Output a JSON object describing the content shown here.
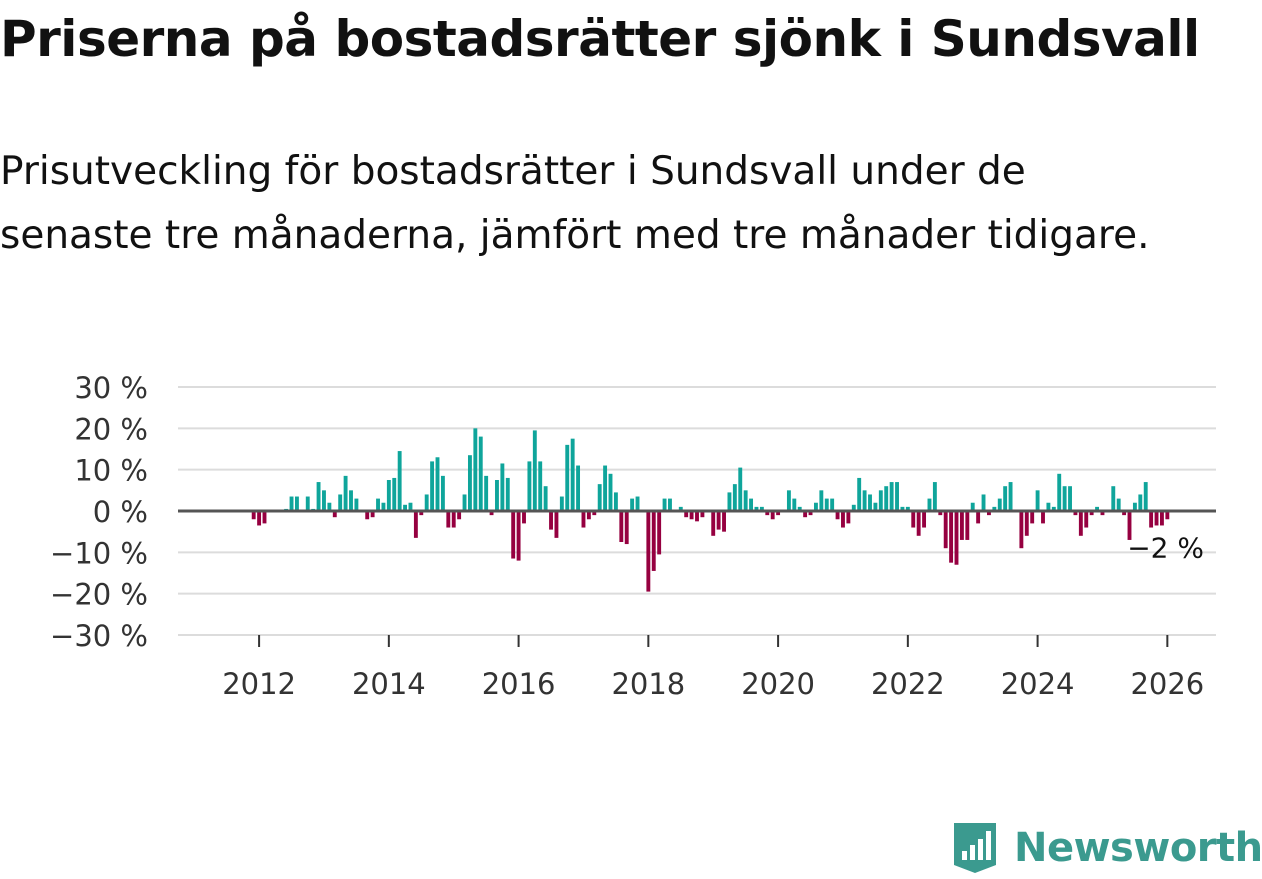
{
  "title": "Priserna på bostadsrätter sjönk i Sundsvall",
  "subtitle": "Prisutveckling för bostadsrätter i Sundsvall under de senaste tre månaderna, jämfört med tre månader tidigare.",
  "brand": {
    "name": "Newsworthy",
    "icon": "newsworthy-logo-icon"
  },
  "colors": {
    "positive": "#0fa59b",
    "negative": "#960040",
    "zero_line": "#555555",
    "grid": "#dcdcdc",
    "brand": "#3b9a8f"
  },
  "chart_data": {
    "type": "bar",
    "title": "Prisutveckling för bostadsrätter i Sundsvall",
    "xlabel": "",
    "ylabel": "",
    "unit": "%",
    "ylim": [
      -30,
      30
    ],
    "xlim": [
      2010.75,
      2026.75
    ],
    "y_ticks": [
      30,
      20,
      10,
      0,
      -10,
      -20,
      -30
    ],
    "y_tick_labels": [
      "30 %",
      "20 %",
      "10 %",
      "0 %",
      "−10 %",
      "−20 %",
      "−30 %"
    ],
    "x_ticks": [
      2012,
      2014,
      2016,
      2018,
      2020,
      2022,
      2024,
      2026
    ],
    "x_tick_labels": [
      "2012",
      "2014",
      "2016",
      "2018",
      "2020",
      "2022",
      "2024",
      "2026"
    ],
    "start": {
      "year": 2011,
      "month": 12
    },
    "annotation": {
      "text": "−2 %",
      "value": -2
    },
    "values": [
      -2,
      -3.5,
      -3,
      0,
      0,
      0,
      0.5,
      3.5,
      3.5,
      0,
      3.5,
      0.5,
      7,
      5,
      2,
      -1.5,
      4,
      8.5,
      5,
      3,
      0,
      -2,
      -1.5,
      3,
      2,
      7.5,
      8,
      14.5,
      1.5,
      2,
      -6.5,
      -1,
      4,
      12,
      13,
      8.5,
      -4,
      -4,
      -2,
      4,
      13.5,
      20,
      18,
      8.5,
      -1,
      7.5,
      11.5,
      8,
      -11.5,
      -12,
      -3,
      12,
      19.5,
      12,
      6,
      -4.5,
      -6.5,
      3.5,
      16,
      17.5,
      11,
      -4,
      -2,
      -1,
      6.5,
      11,
      9,
      4.5,
      -7.5,
      -8,
      3,
      3.5,
      0,
      -19.5,
      -14.5,
      -10.5,
      3,
      3,
      0,
      1,
      -1.5,
      -2,
      -2.5,
      -1.5,
      0,
      -6,
      -4.5,
      -5,
      4.5,
      6.5,
      10.5,
      5,
      3,
      1,
      1,
      -1,
      -2,
      -1,
      0,
      5,
      3,
      1,
      -1.5,
      -1,
      2,
      5,
      3,
      3,
      -2,
      -4,
      -3,
      1.5,
      8,
      5,
      4,
      2,
      5,
      6,
      7,
      7,
      1,
      1,
      -4,
      -6,
      -4,
      3,
      7,
      -1,
      -9,
      -12.5,
      -13,
      -7,
      -7,
      2,
      -3,
      4,
      -1,
      1,
      3,
      6,
      7,
      0,
      -9,
      -6,
      -3,
      5,
      -3,
      2,
      1,
      9,
      6,
      6,
      -1,
      -6,
      -4,
      -1,
      1,
      -1,
      0,
      6,
      3,
      -1,
      -7,
      2,
      4,
      7,
      -4,
      -3.5,
      -3.5,
      -2
    ]
  }
}
